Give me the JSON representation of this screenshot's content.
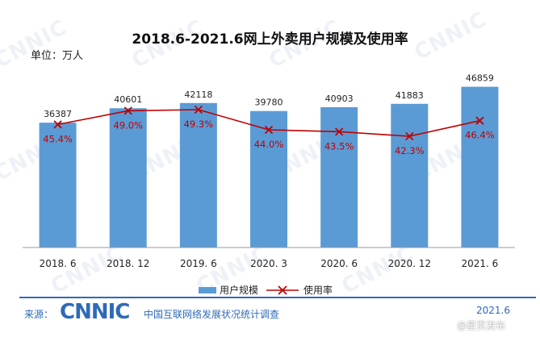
{
  "title": "2018.6-2021.6网上外卖用户规模及使用率",
  "unit_label": "单位：万人",
  "watermark_text": "CNNIC",
  "footer": {
    "source_prefix": "来源：",
    "logo_text": "CNNIC",
    "source_text": "中国互联网络发展状况统计调查",
    "date": "2021.6",
    "overlay": "@星页发布"
  },
  "chart_data": {
    "type": "bar",
    "categories": [
      "2018. 6",
      "2018. 12",
      "2019. 6",
      "2020. 3",
      "2020. 6",
      "2020. 12",
      "2021. 6"
    ],
    "series": [
      {
        "name": "用户规模",
        "type": "bar",
        "values": [
          36387,
          40601,
          42118,
          39780,
          40903,
          41883,
          46859
        ],
        "color": "#5b9bd5"
      },
      {
        "name": "使用率",
        "type": "line",
        "values": [
          45.4,
          49.0,
          49.3,
          44.0,
          43.5,
          42.3,
          46.4
        ],
        "labels": [
          "45.4%",
          "49.0%",
          "49.3%",
          "44.0%",
          "43.5%",
          "42.3%",
          "46.4%"
        ],
        "color": "#c00000"
      }
    ],
    "bar_labels": [
      "36387",
      "40601",
      "42118",
      "39780",
      "40903",
      "41883",
      "46859"
    ],
    "ylim_bar": [
      0,
      50000
    ],
    "ylim_line": [
      30,
      55
    ],
    "legend": [
      "用户规模",
      "使用率"
    ],
    "legend_position": "bottom",
    "grid": false
  }
}
